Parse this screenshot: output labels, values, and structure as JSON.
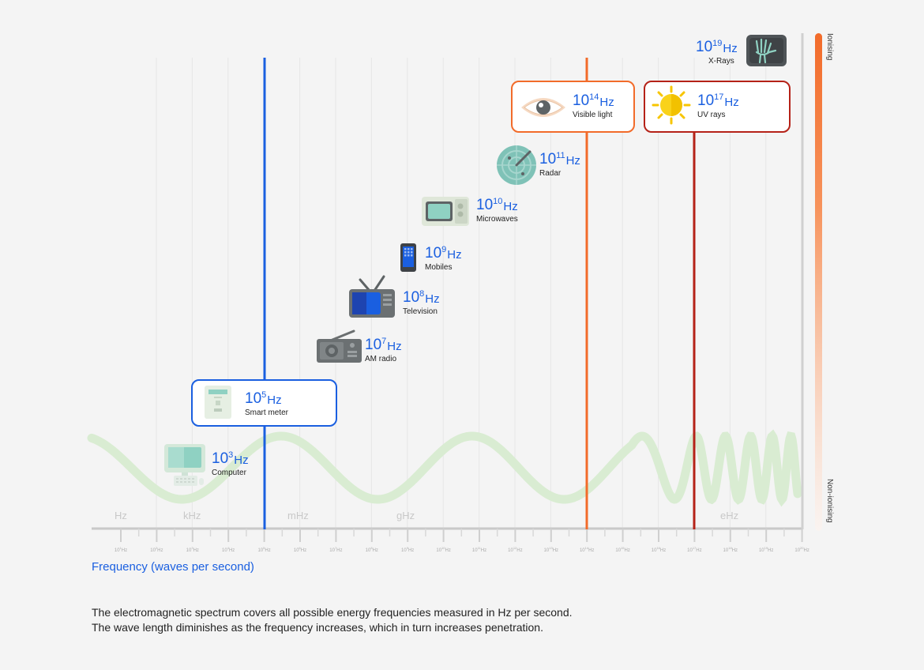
{
  "bands": [
    "Hz",
    "kHz",
    "mHz",
    "gHz",
    "eHz"
  ],
  "ticks": [
    {
      "base": "10",
      "exp": "1",
      "unit": "Hz"
    },
    {
      "base": "10",
      "exp": "2",
      "unit": "Hz"
    },
    {
      "base": "10",
      "exp": "3",
      "unit": "Hz"
    },
    {
      "base": "10",
      "exp": "4",
      "unit": "Hz"
    },
    {
      "base": "10",
      "exp": "5",
      "unit": "Hz"
    },
    {
      "base": "10",
      "exp": "6",
      "unit": "Hz"
    },
    {
      "base": "10",
      "exp": "7",
      "unit": "Hz"
    },
    {
      "base": "10",
      "exp": "8",
      "unit": "Hz"
    },
    {
      "base": "10",
      "exp": "9",
      "unit": "Hz"
    },
    {
      "base": "10",
      "exp": "10",
      "unit": "Hz"
    },
    {
      "base": "10",
      "exp": "11",
      "unit": "Hz"
    },
    {
      "base": "10",
      "exp": "12",
      "unit": "Hz"
    },
    {
      "base": "10",
      "exp": "13",
      "unit": "Hz"
    },
    {
      "base": "10",
      "exp": "14",
      "unit": "Hz"
    },
    {
      "base": "10",
      "exp": "15",
      "unit": "Hz"
    },
    {
      "base": "10",
      "exp": "16",
      "unit": "Hz"
    },
    {
      "base": "10",
      "exp": "17",
      "unit": "Hz"
    },
    {
      "base": "10",
      "exp": "18",
      "unit": "Hz"
    },
    {
      "base": "10",
      "exp": "19",
      "unit": "Hz"
    },
    {
      "base": "10",
      "exp": "20",
      "unit": "Hz"
    }
  ],
  "items": {
    "computer": {
      "base": "10",
      "exp": "3",
      "unit": "Hz",
      "caption": "Computer"
    },
    "smart_meter": {
      "base": "10",
      "exp": "5",
      "unit": "Hz",
      "caption": "Smart meter"
    },
    "am_radio": {
      "base": "10",
      "exp": "7",
      "unit": "Hz",
      "caption": "AM radio"
    },
    "television": {
      "base": "10",
      "exp": "8",
      "unit": "Hz",
      "caption": "Television"
    },
    "mobiles": {
      "base": "10",
      "exp": "9",
      "unit": "Hz",
      "caption": "Mobiles"
    },
    "microwaves": {
      "base": "10",
      "exp": "10",
      "unit": "Hz",
      "caption": "Microwaves"
    },
    "radar": {
      "base": "10",
      "exp": "11",
      "unit": "Hz",
      "caption": "Radar"
    },
    "visible_light": {
      "base": "10",
      "exp": "14",
      "unit": "Hz",
      "caption": "Visible light"
    },
    "uv_rays": {
      "base": "10",
      "exp": "17",
      "unit": "Hz",
      "caption": "UV rays"
    },
    "x_rays": {
      "base": "10",
      "exp": "19",
      "unit": "Hz",
      "caption": "X-Rays"
    }
  },
  "axis_title": "Frequency (waves per second)",
  "scale": {
    "top": "Ionising",
    "bottom": "Non-ionising"
  },
  "description": [
    "The electromagnetic spectrum covers all possible energy frequencies measured in Hz per second.",
    "The wave length diminishes as the frequency increases, which in turn increases penetration."
  ],
  "colors": {
    "blue": "#1a5fe0",
    "orange": "#f26b2a",
    "red": "#b52218",
    "wave": "#d9ecd2"
  }
}
